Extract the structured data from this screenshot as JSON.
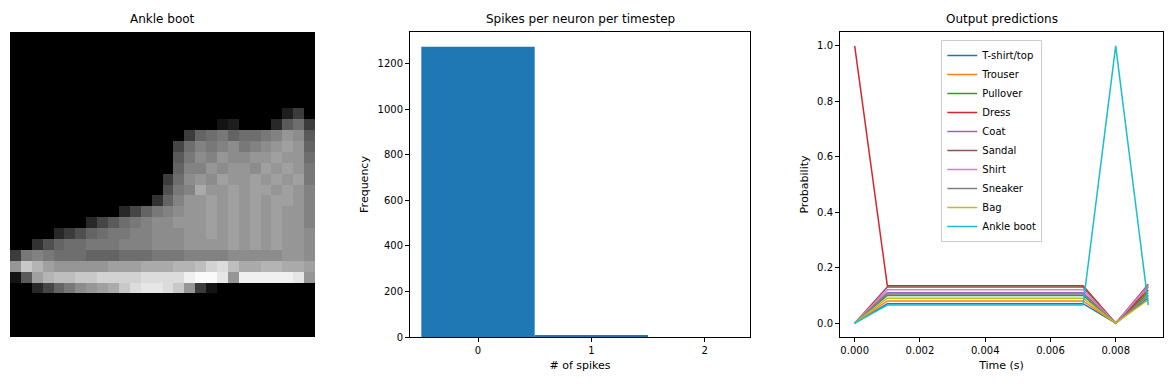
{
  "chart_data": [
    {
      "type": "image",
      "title": "Ankle boot",
      "tick_labels": false,
      "zlim": [
        0,
        255
      ],
      "pixels": [
        [
          0,
          0,
          0,
          0,
          0,
          0,
          0,
          0,
          0,
          0,
          0,
          0,
          0,
          0,
          0,
          0,
          0,
          0,
          0,
          0,
          0,
          0,
          0,
          0,
          0,
          0,
          0,
          0
        ],
        [
          0,
          0,
          0,
          0,
          0,
          0,
          0,
          0,
          0,
          0,
          0,
          0,
          0,
          0,
          0,
          0,
          0,
          0,
          0,
          0,
          0,
          0,
          0,
          0,
          0,
          0,
          0,
          0
        ],
        [
          0,
          0,
          0,
          0,
          0,
          0,
          0,
          0,
          0,
          0,
          0,
          0,
          0,
          0,
          0,
          0,
          0,
          0,
          0,
          0,
          0,
          0,
          0,
          0,
          0,
          0,
          0,
          0
        ],
        [
          0,
          0,
          0,
          0,
          0,
          0,
          0,
          0,
          0,
          0,
          0,
          0,
          0,
          0,
          0,
          0,
          0,
          0,
          0,
          0,
          0,
          0,
          0,
          0,
          0,
          0,
          0,
          0
        ],
        [
          0,
          0,
          0,
          0,
          0,
          0,
          0,
          0,
          0,
          0,
          0,
          0,
          0,
          0,
          0,
          0,
          0,
          0,
          0,
          0,
          0,
          0,
          0,
          0,
          0,
          0,
          0,
          0
        ],
        [
          0,
          0,
          0,
          0,
          0,
          0,
          0,
          0,
          0,
          0,
          0,
          0,
          0,
          0,
          0,
          0,
          0,
          0,
          0,
          0,
          0,
          0,
          0,
          0,
          0,
          0,
          0,
          0
        ],
        [
          0,
          0,
          0,
          0,
          0,
          0,
          0,
          0,
          0,
          0,
          0,
          0,
          0,
          0,
          0,
          0,
          0,
          0,
          0,
          0,
          0,
          0,
          0,
          0,
          0,
          0,
          0,
          0
        ],
        [
          0,
          0,
          0,
          0,
          0,
          0,
          0,
          0,
          0,
          0,
          0,
          0,
          0,
          0,
          0,
          0,
          0,
          0,
          0,
          0,
          0,
          0,
          0,
          0,
          0,
          30,
          60,
          0
        ],
        [
          0,
          0,
          0,
          0,
          0,
          0,
          0,
          0,
          0,
          0,
          0,
          0,
          0,
          0,
          0,
          0,
          0,
          0,
          0,
          20,
          30,
          0,
          0,
          0,
          40,
          90,
          110,
          60
        ],
        [
          0,
          0,
          0,
          0,
          0,
          0,
          0,
          0,
          0,
          0,
          0,
          0,
          0,
          0,
          0,
          0,
          60,
          100,
          110,
          120,
          100,
          110,
          110,
          120,
          130,
          150,
          140,
          90
        ],
        [
          0,
          0,
          0,
          0,
          0,
          0,
          0,
          0,
          0,
          0,
          0,
          0,
          0,
          0,
          0,
          70,
          110,
          130,
          120,
          130,
          140,
          120,
          130,
          140,
          150,
          160,
          150,
          100
        ],
        [
          0,
          0,
          0,
          0,
          0,
          0,
          0,
          0,
          0,
          0,
          0,
          0,
          0,
          0,
          0,
          90,
          120,
          140,
          130,
          150,
          140,
          140,
          150,
          150,
          160,
          150,
          150,
          110
        ],
        [
          0,
          0,
          0,
          0,
          0,
          0,
          0,
          0,
          0,
          0,
          0,
          0,
          0,
          0,
          0,
          100,
          130,
          130,
          150,
          140,
          150,
          150,
          140,
          160,
          150,
          160,
          150,
          120
        ],
        [
          0,
          0,
          0,
          0,
          0,
          0,
          0,
          0,
          0,
          0,
          0,
          0,
          0,
          0,
          60,
          110,
          140,
          150,
          140,
          160,
          150,
          150,
          160,
          150,
          160,
          150,
          160,
          120
        ],
        [
          0,
          0,
          0,
          0,
          0,
          0,
          0,
          0,
          0,
          0,
          0,
          0,
          0,
          0,
          80,
          120,
          130,
          170,
          150,
          150,
          160,
          150,
          160,
          160,
          150,
          160,
          150,
          130
        ],
        [
          0,
          0,
          0,
          0,
          0,
          0,
          0,
          0,
          0,
          0,
          0,
          0,
          0,
          50,
          100,
          130,
          150,
          150,
          160,
          150,
          160,
          150,
          160,
          150,
          160,
          160,
          150,
          130
        ],
        [
          0,
          0,
          0,
          0,
          0,
          0,
          0,
          0,
          0,
          0,
          40,
          70,
          100,
          120,
          130,
          140,
          150,
          150,
          160,
          150,
          160,
          150,
          160,
          150,
          160,
          150,
          150,
          130
        ],
        [
          0,
          0,
          0,
          0,
          0,
          0,
          0,
          40,
          70,
          90,
          110,
          120,
          130,
          140,
          140,
          150,
          150,
          150,
          160,
          150,
          160,
          150,
          160,
          150,
          160,
          150,
          150,
          130
        ],
        [
          0,
          0,
          0,
          0,
          40,
          60,
          80,
          100,
          110,
          120,
          120,
          130,
          130,
          140,
          140,
          140,
          150,
          150,
          160,
          150,
          160,
          150,
          160,
          150,
          160,
          150,
          150,
          140
        ],
        [
          0,
          0,
          50,
          80,
          100,
          110,
          110,
          120,
          120,
          120,
          130,
          130,
          130,
          140,
          140,
          140,
          150,
          150,
          150,
          150,
          160,
          150,
          160,
          150,
          160,
          150,
          150,
          140
        ],
        [
          60,
          120,
          130,
          120,
          110,
          110,
          110,
          100,
          100,
          100,
          110,
          110,
          110,
          120,
          120,
          120,
          130,
          130,
          130,
          130,
          140,
          140,
          140,
          140,
          140,
          150,
          150,
          140
        ],
        [
          150,
          200,
          180,
          160,
          150,
          150,
          150,
          150,
          150,
          160,
          160,
          160,
          170,
          170,
          170,
          180,
          180,
          190,
          210,
          220,
          190,
          170,
          170,
          180,
          180,
          170,
          170,
          160
        ],
        [
          20,
          90,
          160,
          180,
          190,
          190,
          200,
          200,
          210,
          210,
          210,
          210,
          220,
          220,
          220,
          220,
          240,
          250,
          250,
          230,
          150,
          240,
          240,
          240,
          240,
          240,
          230,
          150
        ],
        [
          0,
          0,
          40,
          70,
          100,
          120,
          140,
          150,
          160,
          170,
          200,
          220,
          230,
          230,
          220,
          200,
          150,
          60,
          20,
          0,
          0,
          0,
          0,
          0,
          0,
          0,
          0,
          0
        ],
        [
          0,
          0,
          0,
          0,
          0,
          0,
          0,
          0,
          0,
          0,
          0,
          0,
          0,
          0,
          0,
          0,
          0,
          0,
          0,
          0,
          0,
          0,
          0,
          0,
          0,
          0,
          0,
          0
        ],
        [
          0,
          0,
          0,
          0,
          0,
          0,
          0,
          0,
          0,
          0,
          0,
          0,
          0,
          0,
          0,
          0,
          0,
          0,
          0,
          0,
          0,
          0,
          0,
          0,
          0,
          0,
          0,
          0
        ],
        [
          0,
          0,
          0,
          0,
          0,
          0,
          0,
          0,
          0,
          0,
          0,
          0,
          0,
          0,
          0,
          0,
          0,
          0,
          0,
          0,
          0,
          0,
          0,
          0,
          0,
          0,
          0,
          0
        ],
        [
          0,
          0,
          0,
          0,
          0,
          0,
          0,
          0,
          0,
          0,
          0,
          0,
          0,
          0,
          0,
          0,
          0,
          0,
          0,
          0,
          0,
          0,
          0,
          0,
          0,
          0,
          0,
          0
        ]
      ]
    },
    {
      "type": "histogram",
      "title": "Spikes per neuron per timestep",
      "bins": [
        -0.5,
        0.5,
        1.5
      ],
      "counts": [
        1275,
        5
      ],
      "color": "#1f77b4",
      "xlabel": "# of spikes",
      "ylabel": "Frequency",
      "xlim": [
        -0.6,
        2.4
      ],
      "xticks": [
        0,
        1,
        2
      ],
      "ylim": [
        0,
        1340
      ],
      "yticks": [
        0,
        200,
        400,
        600,
        800,
        1000,
        1200
      ],
      "grid": false
    },
    {
      "type": "line",
      "title": "Output predictions",
      "xlabel": "Time (s)",
      "ylabel": "Probability",
      "x": [
        0,
        0.001,
        0.002,
        0.003,
        0.004,
        0.005,
        0.006,
        0.007,
        0.008,
        0.009
      ],
      "xlim": [
        -0.00045,
        0.00945
      ],
      "xticks": [
        {
          "value": 0,
          "label": "0.000"
        },
        {
          "value": 0.002,
          "label": "0.002"
        },
        {
          "value": 0.004,
          "label": "0.004"
        },
        {
          "value": 0.006,
          "label": "0.006"
        },
        {
          "value": 0.008,
          "label": "0.008"
        }
      ],
      "ylim": [
        -0.05,
        1.05
      ],
      "yticks": [
        {
          "value": 0,
          "label": "0.0"
        },
        {
          "value": 0.2,
          "label": "0.2"
        },
        {
          "value": 0.4,
          "label": "0.4"
        },
        {
          "value": 0.6,
          "label": "0.6"
        },
        {
          "value": 0.8,
          "label": "0.8"
        },
        {
          "value": 1,
          "label": "1.0"
        }
      ],
      "grid": false,
      "legend": "upper center",
      "series": [
        {
          "name": "T-shirt/top",
          "color": "#1f77b4",
          "values": [
            0,
            0.07,
            0.07,
            0.07,
            0.07,
            0.07,
            0.07,
            0.07,
            0,
            0.09
          ]
        },
        {
          "name": "Trouser",
          "color": "#ff7f0e",
          "values": [
            0,
            0.08,
            0.08,
            0.08,
            0.08,
            0.08,
            0.08,
            0.08,
            0,
            0.1
          ]
        },
        {
          "name": "Pullover",
          "color": "#2ca02c",
          "values": [
            0,
            0.1,
            0.1,
            0.1,
            0.1,
            0.1,
            0.1,
            0.1,
            0,
            0.11
          ]
        },
        {
          "name": "Dress",
          "color": "#d62728",
          "values": [
            1.0,
            0.135,
            0.135,
            0.135,
            0.135,
            0.135,
            0.135,
            0.135,
            0,
            0.12
          ]
        },
        {
          "name": "Coat",
          "color": "#9467bd",
          "values": [
            0,
            0.11,
            0.11,
            0.11,
            0.11,
            0.11,
            0.11,
            0.11,
            0,
            0.13
          ]
        },
        {
          "name": "Sandal",
          "color": "#8c564b",
          "values": [
            0,
            0.13,
            0.13,
            0.13,
            0.13,
            0.13,
            0.13,
            0.13,
            0,
            0.14
          ]
        },
        {
          "name": "Shirt",
          "color": "#e377c2",
          "values": [
            0,
            0.12,
            0.12,
            0.12,
            0.12,
            0.12,
            0.12,
            0.12,
            0,
            0.135
          ]
        },
        {
          "name": "Sneaker",
          "color": "#7f7f7f",
          "values": [
            0,
            0.105,
            0.105,
            0.105,
            0.105,
            0.105,
            0.105,
            0.105,
            0,
            0.1
          ]
        },
        {
          "name": "Bag",
          "color": "#bcbd22",
          "values": [
            0,
            0.09,
            0.09,
            0.09,
            0.09,
            0.09,
            0.09,
            0.09,
            0,
            0.085
          ]
        },
        {
          "name": "Ankle boot",
          "color": "#17becf",
          "values": [
            0,
            0.065,
            0.065,
            0.065,
            0.065,
            0.065,
            0.065,
            0.065,
            1.0,
            0.065
          ]
        }
      ]
    }
  ]
}
